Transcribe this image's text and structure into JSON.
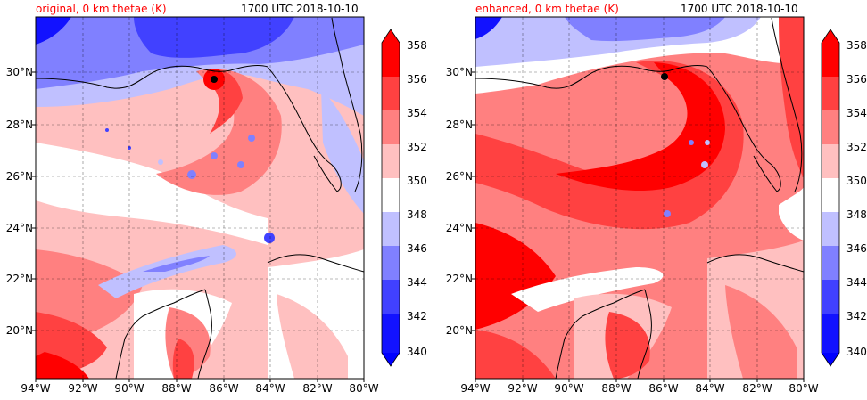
{
  "panels": [
    {
      "title_left": "original, 0 km thetae (K)",
      "title_right": "1700 UTC 2018-10-10",
      "field": "original"
    },
    {
      "title_left": "enhanced, 0 km thetae (K)",
      "title_right": "1700 UTC 2018-10-10",
      "field": "enhanced"
    }
  ],
  "lat_labels": [
    "30°N",
    "28°N",
    "26°N",
    "24°N",
    "22°N",
    "20°N"
  ],
  "lon_labels": [
    "94°W",
    "92°W",
    "90°W",
    "88°W",
    "86°W",
    "84°W",
    "82°W",
    "80°W"
  ],
  "colorbar": {
    "labels": [
      "358",
      "356",
      "354",
      "352",
      "350",
      "348",
      "346",
      "344",
      "342",
      "340"
    ],
    "levels_high_to_low": [
      "#ff0000",
      "#ff4141",
      "#ff8080",
      "#ffc0c0",
      "#ffffff",
      "#c0c0ff",
      "#8080ff",
      "#4141ff",
      "#1212ff"
    ],
    "extend_max_color": "#ff0000",
    "extend_min_color": "#0000ff"
  },
  "chart_data": {
    "type": "heatmap",
    "variable": "0 km thetae (K)",
    "valid_time": "1700 UTC 2018-10-10",
    "lon_range": [
      -94,
      -80
    ],
    "lat_range": [
      18,
      32
    ],
    "levels": [
      340,
      342,
      344,
      346,
      348,
      350,
      352,
      354,
      356,
      358
    ],
    "panels": [
      "original",
      "enhanced"
    ]
  }
}
